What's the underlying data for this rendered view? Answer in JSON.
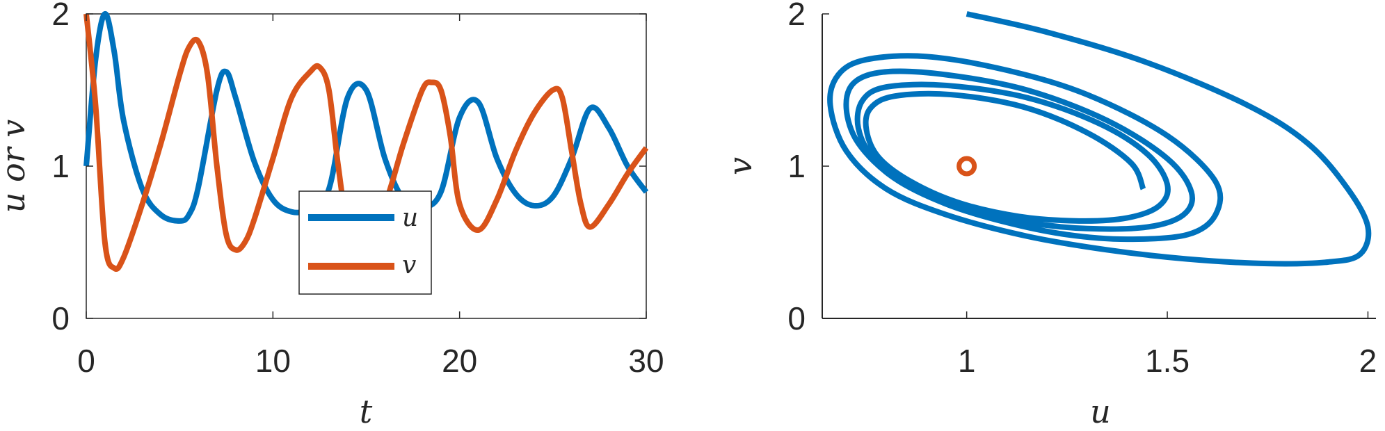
{
  "colors": {
    "u": "#0072BD",
    "v": "#D95319",
    "axis": "#262626"
  },
  "chart_data": [
    {
      "type": "line",
      "title": "",
      "xlabel": "t",
      "ylabel": "u or v",
      "xlim": [
        0,
        30
      ],
      "ylim": [
        0,
        2
      ],
      "xticks": [
        0,
        10,
        20,
        30
      ],
      "yticks": [
        0,
        1,
        2
      ],
      "xtick_labels": [
        "0",
        "10",
        "20",
        "30"
      ],
      "ytick_labels": [
        "0",
        "1",
        "2"
      ],
      "grid": false,
      "legend": {
        "position": "lower-right-center",
        "entries": [
          "u",
          "v"
        ]
      },
      "series": [
        {
          "name": "u",
          "x": [
            0,
            0.5,
            1,
            1.5,
            2,
            3,
            4,
            5,
            5.5,
            6,
            7,
            7.5,
            8,
            9,
            10,
            11,
            12,
            13,
            14,
            15,
            16,
            17,
            18,
            19,
            20,
            21,
            22,
            23,
            24,
            25,
            26,
            27,
            28,
            29,
            30
          ],
          "y": [
            1.0,
            1.7,
            2.0,
            1.75,
            1.3,
            0.85,
            0.68,
            0.64,
            0.68,
            0.86,
            1.5,
            1.62,
            1.45,
            1.03,
            0.78,
            0.7,
            0.72,
            0.85,
            1.45,
            1.5,
            1.05,
            0.78,
            0.73,
            0.83,
            1.32,
            1.42,
            1.05,
            0.82,
            0.74,
            0.8,
            1.05,
            1.38,
            1.25,
            1.0,
            0.83
          ]
        },
        {
          "name": "v",
          "x": [
            0,
            0.5,
            1,
            1.5,
            2,
            3,
            4,
            5,
            5.5,
            6,
            6.5,
            7,
            7.5,
            8,
            8.5,
            9,
            10,
            11,
            12,
            12.5,
            13,
            13.5,
            14,
            15,
            16,
            17,
            18,
            18.5,
            19,
            19.5,
            20,
            21,
            22,
            23,
            24,
            25,
            25.5,
            26,
            26.5,
            27,
            28,
            29,
            30
          ],
          "y": [
            2.0,
            1.4,
            0.5,
            0.33,
            0.4,
            0.75,
            1.15,
            1.6,
            1.78,
            1.82,
            1.6,
            1.0,
            0.55,
            0.45,
            0.5,
            0.65,
            1.05,
            1.45,
            1.62,
            1.65,
            1.5,
            1.0,
            0.65,
            0.55,
            0.75,
            1.15,
            1.5,
            1.55,
            1.5,
            1.2,
            0.75,
            0.58,
            0.78,
            1.1,
            1.35,
            1.5,
            1.45,
            1.1,
            0.75,
            0.6,
            0.75,
            0.95,
            1.12
          ]
        }
      ]
    },
    {
      "type": "line",
      "title": "",
      "xlabel": "u",
      "ylabel": "v",
      "xlim": [
        0.64,
        2.02
      ],
      "ylim": [
        0,
        2
      ],
      "xticks": [
        1,
        1.5,
        2
      ],
      "yticks": [
        0,
        1,
        2
      ],
      "xtick_labels": [
        "1",
        "1.5",
        "2"
      ],
      "ytick_labels": [
        "0",
        "1",
        "2"
      ],
      "grid": false,
      "series": [
        {
          "name": "",
          "u": [
            1.0,
            1.2,
            1.45,
            1.7,
            1.85,
            1.95,
            2.0,
            1.98,
            1.9,
            1.75,
            1.55,
            1.35,
            1.15,
            0.95,
            0.8,
            0.7,
            0.66,
            0.68,
            0.75,
            0.9,
            1.1,
            1.3,
            1.5,
            1.62,
            1.62,
            1.55,
            1.4,
            1.25,
            1.1,
            0.95,
            0.82,
            0.73,
            0.7,
            0.72,
            0.8,
            0.95,
            1.15,
            1.35,
            1.5,
            1.56,
            1.54,
            1.45,
            1.3,
            1.15,
            1.0,
            0.87,
            0.77,
            0.73,
            0.74,
            0.8,
            0.95,
            1.15,
            1.33,
            1.45,
            1.5,
            1.48,
            1.4,
            1.28,
            1.13,
            0.98,
            0.86,
            0.78,
            0.75,
            0.76,
            0.82,
            0.96,
            1.14,
            1.3,
            1.41,
            1.44
          ],
          "v": [
            2.0,
            1.88,
            1.68,
            1.4,
            1.15,
            0.85,
            0.6,
            0.42,
            0.37,
            0.36,
            0.39,
            0.45,
            0.54,
            0.68,
            0.85,
            1.1,
            1.4,
            1.6,
            1.7,
            1.72,
            1.63,
            1.47,
            1.2,
            0.9,
            0.68,
            0.55,
            0.52,
            0.55,
            0.63,
            0.75,
            0.92,
            1.15,
            1.38,
            1.55,
            1.62,
            1.6,
            1.5,
            1.3,
            1.05,
            0.83,
            0.68,
            0.6,
            0.59,
            0.63,
            0.72,
            0.87,
            1.05,
            1.25,
            1.43,
            1.52,
            1.53,
            1.45,
            1.28,
            1.08,
            0.88,
            0.74,
            0.66,
            0.64,
            0.67,
            0.76,
            0.9,
            1.06,
            1.24,
            1.38,
            1.46,
            1.47,
            1.39,
            1.22,
            1.02,
            0.85
          ]
        },
        {
          "name": "",
          "type": "scatter",
          "u": [
            1
          ],
          "v": [
            1
          ]
        }
      ]
    }
  ]
}
